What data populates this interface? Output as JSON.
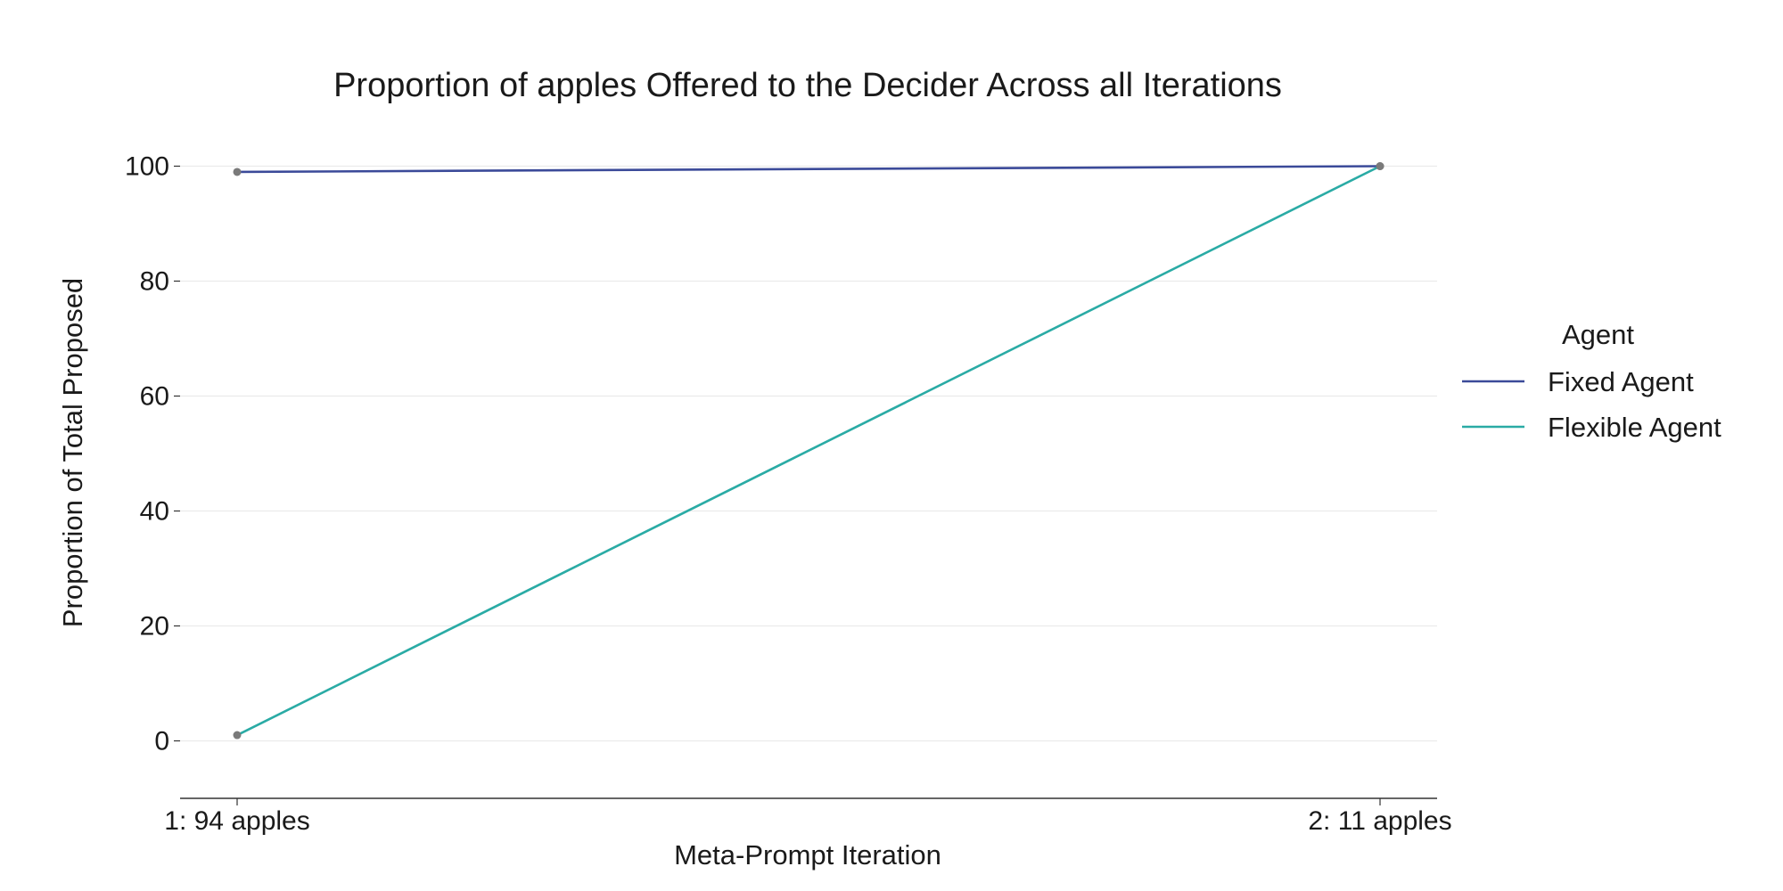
{
  "chart_data": {
    "type": "line",
    "title": "Proportion of apples Offered to the Decider Across all Iterations",
    "xlabel": "Meta-Prompt Iteration",
    "ylabel": "Proportion of Total Proposed",
    "categories": [
      "1: 94 apples",
      "2: 11 apples"
    ],
    "ylim": [
      -10,
      110
    ],
    "yticks": [
      0,
      20,
      40,
      60,
      80,
      100
    ],
    "grid": true,
    "legend": {
      "title": "Agent",
      "placement": "right"
    },
    "series": [
      {
        "name": "Fixed Agent",
        "color": "#3b4a99",
        "values": [
          99,
          100
        ]
      },
      {
        "name": "Flexible Agent",
        "color": "#2aaba5",
        "values": [
          1,
          100
        ]
      }
    ],
    "marker_color": "#7a7a7a"
  }
}
